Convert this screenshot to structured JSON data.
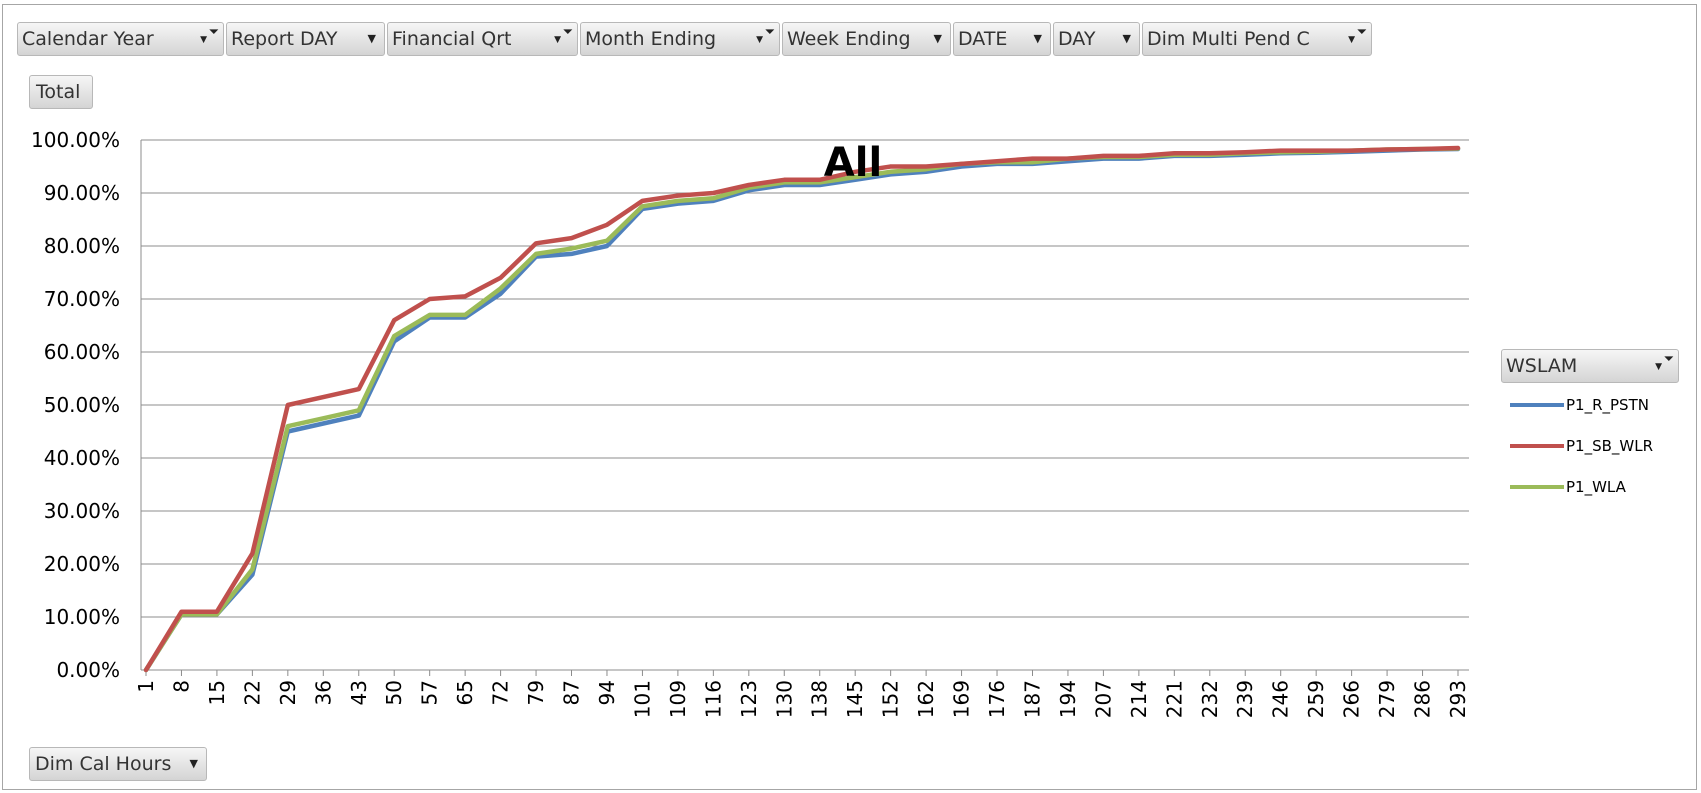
{
  "filters": [
    {
      "label": "Calendar Year",
      "icon": "filter-funnel-icon"
    },
    {
      "label": "Report DAY",
      "icon": "dropdown-arrow-icon"
    },
    {
      "label": "Financial Qrt",
      "icon": "filter-funnel-icon"
    },
    {
      "label": "Month Ending",
      "icon": "filter-funnel-icon"
    },
    {
      "label": "Week Ending",
      "icon": "dropdown-arrow-icon"
    },
    {
      "label": "DATE",
      "icon": "dropdown-arrow-icon"
    },
    {
      "label": "DAY",
      "icon": "dropdown-arrow-icon"
    },
    {
      "label": "Dim Multi Pend C",
      "icon": "filter-funnel-icon"
    }
  ],
  "values_button": {
    "label": "Total"
  },
  "axis_field_button": {
    "label": "Dim Cal Hours",
    "icon": "dropdown-arrow-icon"
  },
  "legend_field_button": {
    "label": "WSLAM",
    "icon": "filter-funnel-icon"
  },
  "colors": {
    "P1_R_PSTN": "#4f81bd",
    "P1_SB_WLR": "#c0504d",
    "P1_WLA": "#9bbb59",
    "gridline": "#8c8c8c"
  },
  "chart_data": {
    "type": "line",
    "title": "All",
    "xlabel": "",
    "ylabel": "",
    "ylim": [
      0,
      100
    ],
    "y_ticks": [
      "0.00%",
      "10.00%",
      "20.00%",
      "30.00%",
      "40.00%",
      "50.00%",
      "60.00%",
      "70.00%",
      "80.00%",
      "90.00%",
      "100.00%"
    ],
    "x_tick_labels": [
      "1",
      "8",
      "15",
      "22",
      "29",
      "36",
      "43",
      "50",
      "57",
      "65",
      "72",
      "79",
      "87",
      "94",
      "101",
      "109",
      "116",
      "123",
      "130",
      "138",
      "145",
      "152",
      "162",
      "169",
      "176",
      "187",
      "194",
      "207",
      "214",
      "221",
      "232",
      "239",
      "246",
      "259",
      "266",
      "279",
      "286",
      "293"
    ],
    "grid": true,
    "legend_position": "right",
    "series": [
      {
        "name": "P1_R_PSTN",
        "values": [
          0,
          10.5,
          10.5,
          18,
          45,
          46.5,
          48,
          62,
          66.5,
          66.5,
          71,
          78,
          78.5,
          80,
          87,
          88,
          88.5,
          90.5,
          91.5,
          91.5,
          92.5,
          93.5,
          94,
          95,
          95.5,
          95.5,
          96,
          96.5,
          96.5,
          97,
          97,
          97.2,
          97.5,
          97.6,
          97.8,
          98,
          98.2,
          98.3
        ]
      },
      {
        "name": "P1_SB_WLR",
        "values": [
          0,
          11,
          11,
          22,
          50,
          51.5,
          53,
          66,
          70,
          70.5,
          74,
          80.5,
          81.5,
          84,
          88.5,
          89.5,
          90,
          91.5,
          92.5,
          92.5,
          94,
          95,
          95,
          95.5,
          96,
          96.5,
          96.5,
          97,
          97,
          97.5,
          97.5,
          97.7,
          98,
          98,
          98,
          98.2,
          98.3,
          98.5
        ]
      },
      {
        "name": "P1_WLA",
        "values": [
          0,
          10.5,
          10.5,
          19,
          46,
          47.5,
          49,
          63,
          67,
          67,
          72,
          78.5,
          79.5,
          81,
          87.5,
          88.5,
          89,
          91,
          92,
          92,
          93,
          94,
          94.5,
          95.5,
          95.8,
          95.8,
          96.5,
          96.8,
          96.8,
          97.2,
          97.2,
          97.5,
          97.7,
          97.8,
          98,
          98.2,
          98.3,
          98.4
        ]
      }
    ]
  }
}
